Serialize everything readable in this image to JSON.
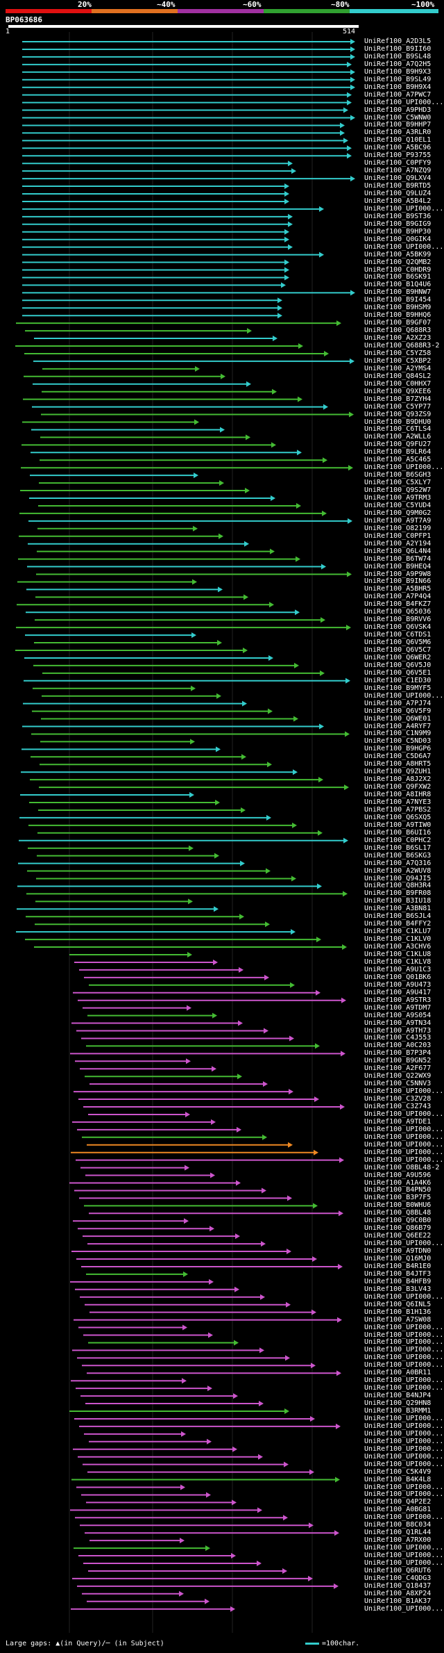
{
  "scale": {
    "labels": [
      "20%",
      "~40%",
      "~60%",
      "~80%",
      "~100%"
    ],
    "colors": [
      "#e01010",
      "#e07020",
      "#a030a0",
      "#30a030",
      "#33cccc"
    ]
  },
  "query": {
    "name": "BP063686",
    "start": "1",
    "end": "514"
  },
  "hits": [
    "UniRef100_A2D3L5",
    "UniRef100_B9II60",
    "UniRef100_B9SL48",
    "UniRef100_A7Q2H5",
    "UniRef100_B9H9X3",
    "UniRef100_B9SL49",
    "UniRef100_B9H9X4",
    "UniRef100_A7PWC7",
    "UniRef100_UPI000...",
    "UniRef100_A9PHD3",
    "UniRef100_C5WNW0",
    "UniRef100_B9HHP7",
    "UniRef100_A3RLR0",
    "UniRef100_Q10EL1",
    "UniRef100_A5BC96",
    "UniRef100_P93755",
    "UniRef100_C0PFY9",
    "UniRef100_A7NZQ9",
    "UniRef100_Q9LXV4",
    "UniRef100_B9RTD5",
    "UniRef100_Q9LUZ4",
    "UniRef100_A5B4L2",
    "UniRef100_UPI000...",
    "UniRef100_B9ST36",
    "UniRef100_B9GIG9",
    "UniRef100_B9HP30",
    "UniRef100_Q0GIK4",
    "UniRef100_UPI000...",
    "UniRef100_A5BK99",
    "UniRef100_Q2QMB2",
    "UniRef100_C0HDR9",
    "UniRef100_B6SK91",
    "UniRef100_B1Q4U6",
    "UniRef100_B9HNW7",
    "UniRef100_B9I454",
    "UniRef100_B9HSM9",
    "UniRef100_B9HHQ6",
    "UniRef100_B9GF07",
    "UniRef100_Q688R3",
    "UniRef100_A2XZ23",
    "UniRef100_Q688R3-2",
    "UniRef100_C5YZ58",
    "UniRef100_C5XBP2",
    "UniRef100_A2YMS4",
    "UniRef100_Q84SL2",
    "UniRef100_C0HHX7",
    "UniRef100_Q9XEE6",
    "UniRef100_B7ZYH4",
    "UniRef100_C5YP77",
    "UniRef100_Q93ZS9",
    "UniRef100_B9DHU0",
    "UniRef100_C6TLS4",
    "UniRef100_A2WLL6",
    "UniRef100_Q9FU27",
    "UniRef100_B9LR64",
    "UniRef100_A5C465",
    "UniRef100_UPI000...",
    "UniRef100_B6SGH3",
    "UniRef100_C5XLY7",
    "UniRef100_Q9S2W7",
    "UniRef100_A9TRM3",
    "UniRef100_C5YUD4",
    "UniRef100_Q9M0G2",
    "UniRef100_A9T7A9",
    "UniRef100_O82199",
    "UniRef100_C0PFP1",
    "UniRef100_A2Y194",
    "UniRef100_Q6L4N4",
    "UniRef100_B6TW74",
    "UniRef100_B9HEQ4",
    "UniRef100_A9P9W8",
    "UniRef100_B9IN66",
    "UniRef100_A5BHR5",
    "UniRef100_A7P4Q4",
    "UniRef100_B4FKZ7",
    "UniRef100_Q65036",
    "UniRef100_B9RVV6",
    "UniRef100_Q6VSK4",
    "UniRef100_C6TDS1",
    "UniRef100_Q6V5M6",
    "UniRef100_Q6V5C7",
    "UniRef100_Q6WER2",
    "UniRef100_Q6V5J0",
    "UniRef100_Q6V5E1",
    "UniRef100_C1ED30",
    "UniRef100_B9MYF5",
    "UniRef100_UPI000...",
    "UniRef100_A7PJ74",
    "UniRef100_Q6V5F9",
    "UniRef100_Q6WE01",
    "UniRef100_A4RYF7",
    "UniRef100_C1N9M9",
    "UniRef100_C5ND03",
    "UniRef100_B9HGP6",
    "UniRef100_C5D6A7",
    "UniRef100_A8HRT5",
    "UniRef100_Q9ZUH1",
    "UniRef100_A8J2X2",
    "UniRef100_Q9FXW2",
    "UniRef100_A8IHR8",
    "UniRef100_A7NYE3",
    "UniRef100_A7PBS2",
    "UniRef100_Q6SXQ5",
    "UniRef100_A9TIW0",
    "UniRef100_B6UI16",
    "UniRef100_C0PHC2",
    "UniRef100_B6SL17",
    "UniRef100_B6SKG3",
    "UniRef100_A7Q316",
    "UniRef100_A2WUV8",
    "UniRef100_Q94JI5",
    "UniRef100_Q8H3R4",
    "UniRef100_B9FR08",
    "UniRef100_B3IU18",
    "UniRef100_A3BN81",
    "UniRef100_B6SJL4",
    "UniRef100_B4FFY2",
    "UniRef100_C1KLU7",
    "UniRef100_C1KLV0",
    "UniRef100_A3CHV6",
    "UniRef100_C1KLU8",
    "UniRef100_C1KLV8",
    "UniRef100_A9U1C3",
    "UniRef100_Q01BK6",
    "UniRef100_A9U473",
    "UniRef100_A9U417",
    "UniRef100_A9STR3",
    "UniRef100_A9TDM7",
    "UniRef100_A9S054",
    "UniRef100_A9TN34",
    "UniRef100_A9TH73",
    "UniRef100_C4J553",
    "UniRef100_A0C203",
    "UniRef100_B7P3P4",
    "UniRef100_B9GN52",
    "UniRef100_A2F677",
    "UniRef100_Q22WX9",
    "UniRef100_C5NNV3",
    "UniRef100_UPI000...",
    "UniRef100_C3ZV28",
    "UniRef100_C3Z743",
    "UniRef100_UPI000...",
    "UniRef100_A9TDE1",
    "UniRef100_UPI000...",
    "UniRef100_UPI000...",
    "UniRef100_UPI000...",
    "UniRef100_UPI000...",
    "UniRef100_UPI000...",
    "UniRef100_O8BL48-2",
    "UniRef100_A9U596",
    "UniRef100_A1A4K6",
    "UniRef100_B4PN50",
    "UniRef100_B3P7F5",
    "UniRef100_B0WHU6",
    "UniRef100_Q8BL48",
    "UniRef100_Q9C0B0",
    "UniRef100_Q86B79",
    "UniRef100_Q6EE22",
    "UniRef100_UPI000...",
    "UniRef100_A9TDN0",
    "UniRef100_Q16MJ0",
    "UniRef100_B4R1E0",
    "UniRef100_B4JTF3",
    "UniRef100_B4HFB9",
    "UniRef100_B3LV43",
    "UniRef100_UPI000...",
    "UniRef100_Q6INL5",
    "UniRef100_B1H136",
    "UniRef100_A7SW08",
    "UniRef100_UPI000...",
    "UniRef100_UPI000...",
    "UniRef100_UPI000...",
    "UniRef100_UPI000...",
    "UniRef100_UPI000...",
    "UniRef100_UPI000...",
    "UniRef100_A0BR11",
    "UniRef100_UPI000...",
    "UniRef100_UPI000...",
    "UniRef100_B4NJP4",
    "UniRef100_Q29HN8",
    "UniRef100_B3RMM1",
    "UniRef100_UPI000...",
    "UniRef100_UPI000...",
    "UniRef100_UPI000...",
    "UniRef100_UPI000...",
    "UniRef100_UPI000...",
    "UniRef100_UPI000...",
    "UniRef100_UPI000...",
    "UniRef100_C5K4V9",
    "UniRef100_B4K4L8",
    "UniRef100_UPI000...",
    "UniRef100_UPI000...",
    "UniRef100_Q4P2E2",
    "UniRef100_A0BG81",
    "UniRef100_UPI000...",
    "UniRef100_B8C034",
    "UniRef100_Q1RL44",
    "UniRef100_A7RX00",
    "UniRef100_UPI000...",
    "UniRef100_UPI000...",
    "UniRef100_UPI000...",
    "UniRef100_Q6RUT6",
    "UniRef100_C4QDG3",
    "UniRef100_Q18437",
    "UniRef100_A8XP24",
    "UniRef100_B1AK37",
    "UniRef100_UPI000..."
  ],
  "footer": {
    "gaps": "Large gaps: ▲(in Query)/─ (in Subject)",
    "legend": "=100char."
  }
}
